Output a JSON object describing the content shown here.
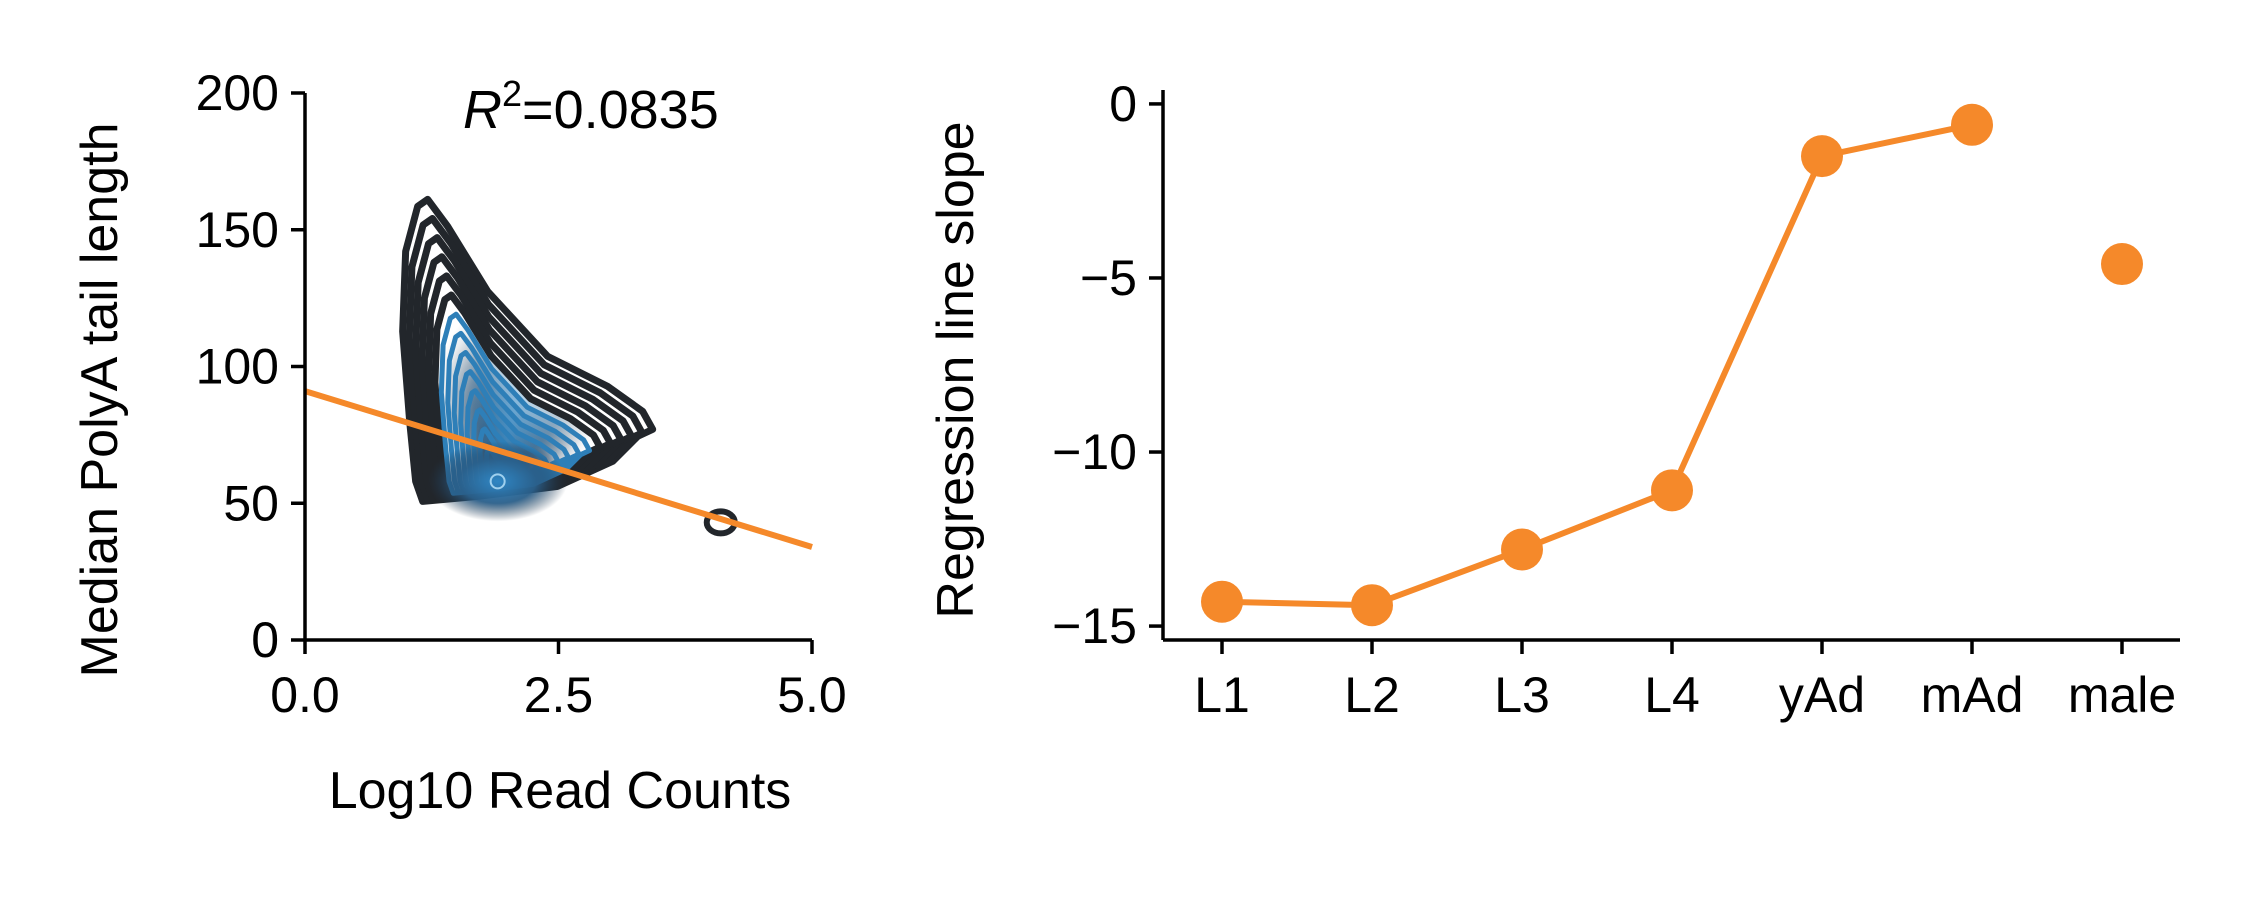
{
  "chart_data": [
    {
      "type": "scatter",
      "subtype": "kde-contour-with-regression",
      "xlabel": "Log10 Read Counts",
      "ylabel": "Median PolyA tail length",
      "xlim": [
        0,
        5
      ],
      "ylim": [
        0,
        200
      ],
      "xticks": [
        0,
        2.5,
        5
      ],
      "xtick_labels": [
        "0.0",
        "2.5",
        "5.0"
      ],
      "yticks": [
        0,
        50,
        100,
        150,
        200
      ],
      "ytick_labels": [
        "0",
        "50",
        "100",
        "150",
        "200"
      ],
      "annotation": {
        "r2_symbol": "R",
        "r2_exponent": "2",
        "r2_value": "=0.0835"
      },
      "regression_line": {
        "x": [
          0,
          5
        ],
        "y": [
          91,
          34
        ]
      },
      "density_peak": {
        "x": 1.9,
        "y": 58
      },
      "outlier_contour": {
        "x": 4.1,
        "y": 43
      },
      "contour_color_outer": "#22262b",
      "contour_color_inner": "#2e7fb8",
      "regression_color": "#f5892a",
      "grid": false
    },
    {
      "type": "line",
      "xlabel": "",
      "ylabel": "Regression line slope",
      "categories": [
        "L1",
        "L2",
        "L3",
        "L4",
        "yAd",
        "mAd",
        "male"
      ],
      "values": [
        -14.3,
        -14.4,
        -12.8,
        -11.1,
        -1.5,
        -0.6,
        -4.6
      ],
      "connected": [
        true,
        true,
        true,
        true,
        true,
        true,
        false
      ],
      "ylim": [
        -15.4,
        0.4
      ],
      "yticks": [
        0,
        -5,
        -10,
        -15
      ],
      "ytick_labels": [
        "0",
        "−5",
        "−10",
        "−15"
      ],
      "color": "#f5892a",
      "grid": false
    }
  ]
}
